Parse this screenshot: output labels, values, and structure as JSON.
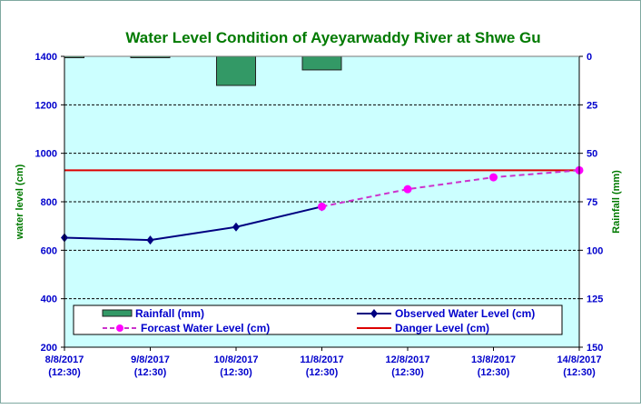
{
  "chart_data": {
    "type": "line",
    "title": "Water Level  Condition of Ayeyarwaddy River at Shwe Gu",
    "ylabel": "water level (cm)",
    "y2label": "Rainfall (mm)",
    "ylim": [
      200,
      1400
    ],
    "y2lim": [
      150,
      0
    ],
    "yticks": [
      "200",
      "400",
      "600",
      "800",
      "1000",
      "1200",
      "1400"
    ],
    "y2ticks": [
      "0",
      "25",
      "50",
      "75",
      "100",
      "125",
      "150"
    ],
    "categories": [
      {
        "date": "8/8/2017",
        "time": "(12:30)"
      },
      {
        "date": "9/8/2017",
        "time": "(12:30)"
      },
      {
        "date": "10/8/2017",
        "time": "(12:30)"
      },
      {
        "date": "11/8/2017",
        "time": "(12:30)"
      },
      {
        "date": "12/8/2017",
        "time": "(12:30)"
      },
      {
        "date": "13/8/2017",
        "time": "(12:30)"
      },
      {
        "date": "14/8/2017",
        "time": "(12:30)"
      }
    ],
    "grid": true,
    "legend_position": "bottom-inside",
    "series": [
      {
        "name": "Rainfall (mm)",
        "kind": "bar",
        "axis": "right",
        "color": "#339966",
        "values": [
          0.5,
          0.5,
          15,
          7,
          null,
          null,
          null
        ]
      },
      {
        "name": "Observed Water Level (cm)",
        "kind": "line",
        "color": "#000080",
        "values": [
          652,
          642,
          696,
          780,
          null,
          null,
          null
        ]
      },
      {
        "name": "Forcast Water Level (cm)",
        "kind": "dashed-line",
        "color": "#ff00ff",
        "values": [
          null,
          null,
          null,
          780,
          852,
          901,
          930
        ]
      },
      {
        "name": "Danger Level (cm)",
        "kind": "hline",
        "color": "#dd0000",
        "value": 930
      }
    ]
  }
}
